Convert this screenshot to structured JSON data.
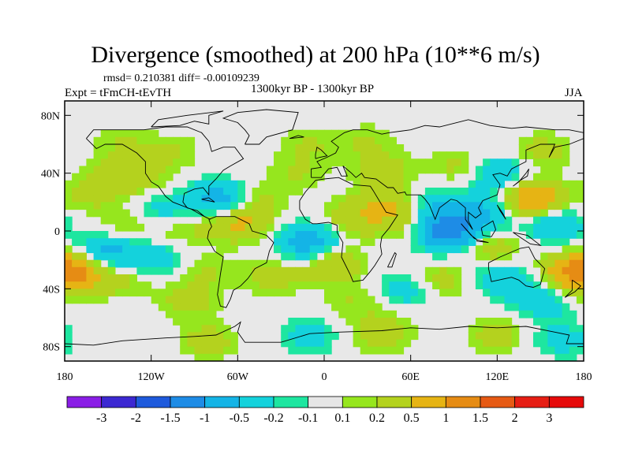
{
  "title": "Divergence (smoothed) at 200 hPa (10**6 m/s)",
  "stats": "rmsd= 0.210381 diff= -0.00109239",
  "experiment": "Expt = tFmCH-tEvTH",
  "period": "1300kyr BP - 1300kyr BP",
  "season": "JJA",
  "chart_data": {
    "type": "contour-map",
    "title": "Divergence (smoothed) at 200 hPa (10**6 m/s)",
    "units": "10**6 m/s",
    "projection": "cylindrical equidistant",
    "xlim": [
      -180,
      180
    ],
    "ylim": [
      -90,
      90
    ],
    "x_ticks": [
      {
        "value": -180,
        "label": "180"
      },
      {
        "value": -120,
        "label": "120W"
      },
      {
        "value": -60,
        "label": "60W"
      },
      {
        "value": 0,
        "label": "0"
      },
      {
        "value": 60,
        "label": "60E"
      },
      {
        "value": 120,
        "label": "120E"
      },
      {
        "value": 180,
        "label": "180"
      }
    ],
    "y_ticks": [
      {
        "value": 80,
        "label": "80N"
      },
      {
        "value": 40,
        "label": "40N"
      },
      {
        "value": 0,
        "label": "0"
      },
      {
        "value": -40,
        "label": "40S"
      },
      {
        "value": -80,
        "label": "80S"
      }
    ],
    "colorbar": {
      "labels": [
        "-3",
        "-2",
        "-1.5",
        "-1",
        "-0.5",
        "-0.2",
        "-0.1",
        "0.1",
        "0.2",
        "0.5",
        "1",
        "1.5",
        "2",
        "3"
      ],
      "colors": [
        "#8a1ee6",
        "#3c28d2",
        "#1e5adc",
        "#1e8ce6",
        "#14b4e6",
        "#14d2dc",
        "#1ee6a0",
        "#e6e6e6",
        "#96e61e",
        "#b4d21e",
        "#e6b414",
        "#e68c14",
        "#e65a14",
        "#e61e14",
        "#e60a0a"
      ]
    },
    "field_blobs": [
      {
        "lon": -130,
        "lat": 38,
        "value": 0.3
      },
      {
        "lon": -150,
        "lat": 36,
        "value": 0.2
      },
      {
        "lon": -165,
        "lat": 22,
        "value": 0.2
      },
      {
        "lon": -112,
        "lat": 12,
        "value": -0.4
      },
      {
        "lon": -135,
        "lat": 3,
        "value": 0.3
      },
      {
        "lon": -100,
        "lat": 3,
        "value": 0.3
      },
      {
        "lon": -60,
        "lat": 6,
        "value": 0.6
      },
      {
        "lon": -72,
        "lat": 22,
        "value": -0.8
      },
      {
        "lon": -50,
        "lat": 22,
        "value": 0.3
      },
      {
        "lon": -150,
        "lat": -14,
        "value": -0.6
      },
      {
        "lon": -120,
        "lat": -20,
        "value": -0.4
      },
      {
        "lon": -175,
        "lat": -30,
        "value": 0.8
      },
      {
        "lon": -140,
        "lat": -33,
        "value": 0.3
      },
      {
        "lon": -80,
        "lat": -28,
        "value": 0.2
      },
      {
        "lon": -95,
        "lat": -48,
        "value": 0.3
      },
      {
        "lon": -35,
        "lat": -32,
        "value": 0.3
      },
      {
        "lon": -10,
        "lat": -8,
        "value": -0.8
      },
      {
        "lon": 5,
        "lat": -22,
        "value": 0.5
      },
      {
        "lon": 20,
        "lat": 8,
        "value": 0.4
      },
      {
        "lon": 45,
        "lat": 18,
        "value": 0.5
      },
      {
        "lon": 60,
        "lat": 5,
        "value": 0.3
      },
      {
        "lon": 85,
        "lat": 0,
        "value": -1.3
      },
      {
        "lon": 75,
        "lat": 18,
        "value": -0.4
      },
      {
        "lon": 110,
        "lat": 12,
        "value": -0.6
      },
      {
        "lon": 115,
        "lat": -12,
        "value": 0.4
      },
      {
        "lon": 145,
        "lat": 22,
        "value": 0.9
      },
      {
        "lon": 160,
        "lat": 5,
        "value": -0.5
      },
      {
        "lon": 175,
        "lat": -28,
        "value": 0.8
      },
      {
        "lon": 120,
        "lat": 40,
        "value": -0.5
      },
      {
        "lon": 95,
        "lat": 45,
        "value": 0.3
      },
      {
        "lon": 40,
        "lat": 42,
        "value": 0.3
      },
      {
        "lon": 120,
        "lat": -32,
        "value": -0.4
      },
      {
        "lon": 80,
        "lat": -35,
        "value": 0.4
      },
      {
        "lon": 60,
        "lat": -40,
        "value": -0.4
      },
      {
        "lon": 20,
        "lat": -48,
        "value": 0.2
      },
      {
        "lon": 150,
        "lat": -48,
        "value": -0.4
      },
      {
        "lon": -10,
        "lat": 60,
        "value": 0.2
      },
      {
        "lon": 30,
        "lat": 62,
        "value": 0.2
      },
      {
        "lon": 150,
        "lat": 55,
        "value": 0.3
      },
      {
        "lon": -140,
        "lat": 60,
        "value": 0.2
      },
      {
        "lon": -105,
        "lat": 55,
        "value": 0.2
      },
      {
        "lon": -20,
        "lat": 40,
        "value": 0.2
      },
      {
        "lon": 40,
        "lat": -70,
        "value": 0.4
      },
      {
        "lon": -10,
        "lat": -72,
        "value": -0.3
      },
      {
        "lon": -80,
        "lat": -76,
        "value": 0.3
      },
      {
        "lon": 120,
        "lat": -72,
        "value": 0.3
      },
      {
        "lon": 165,
        "lat": -75,
        "value": -0.3
      }
    ]
  }
}
